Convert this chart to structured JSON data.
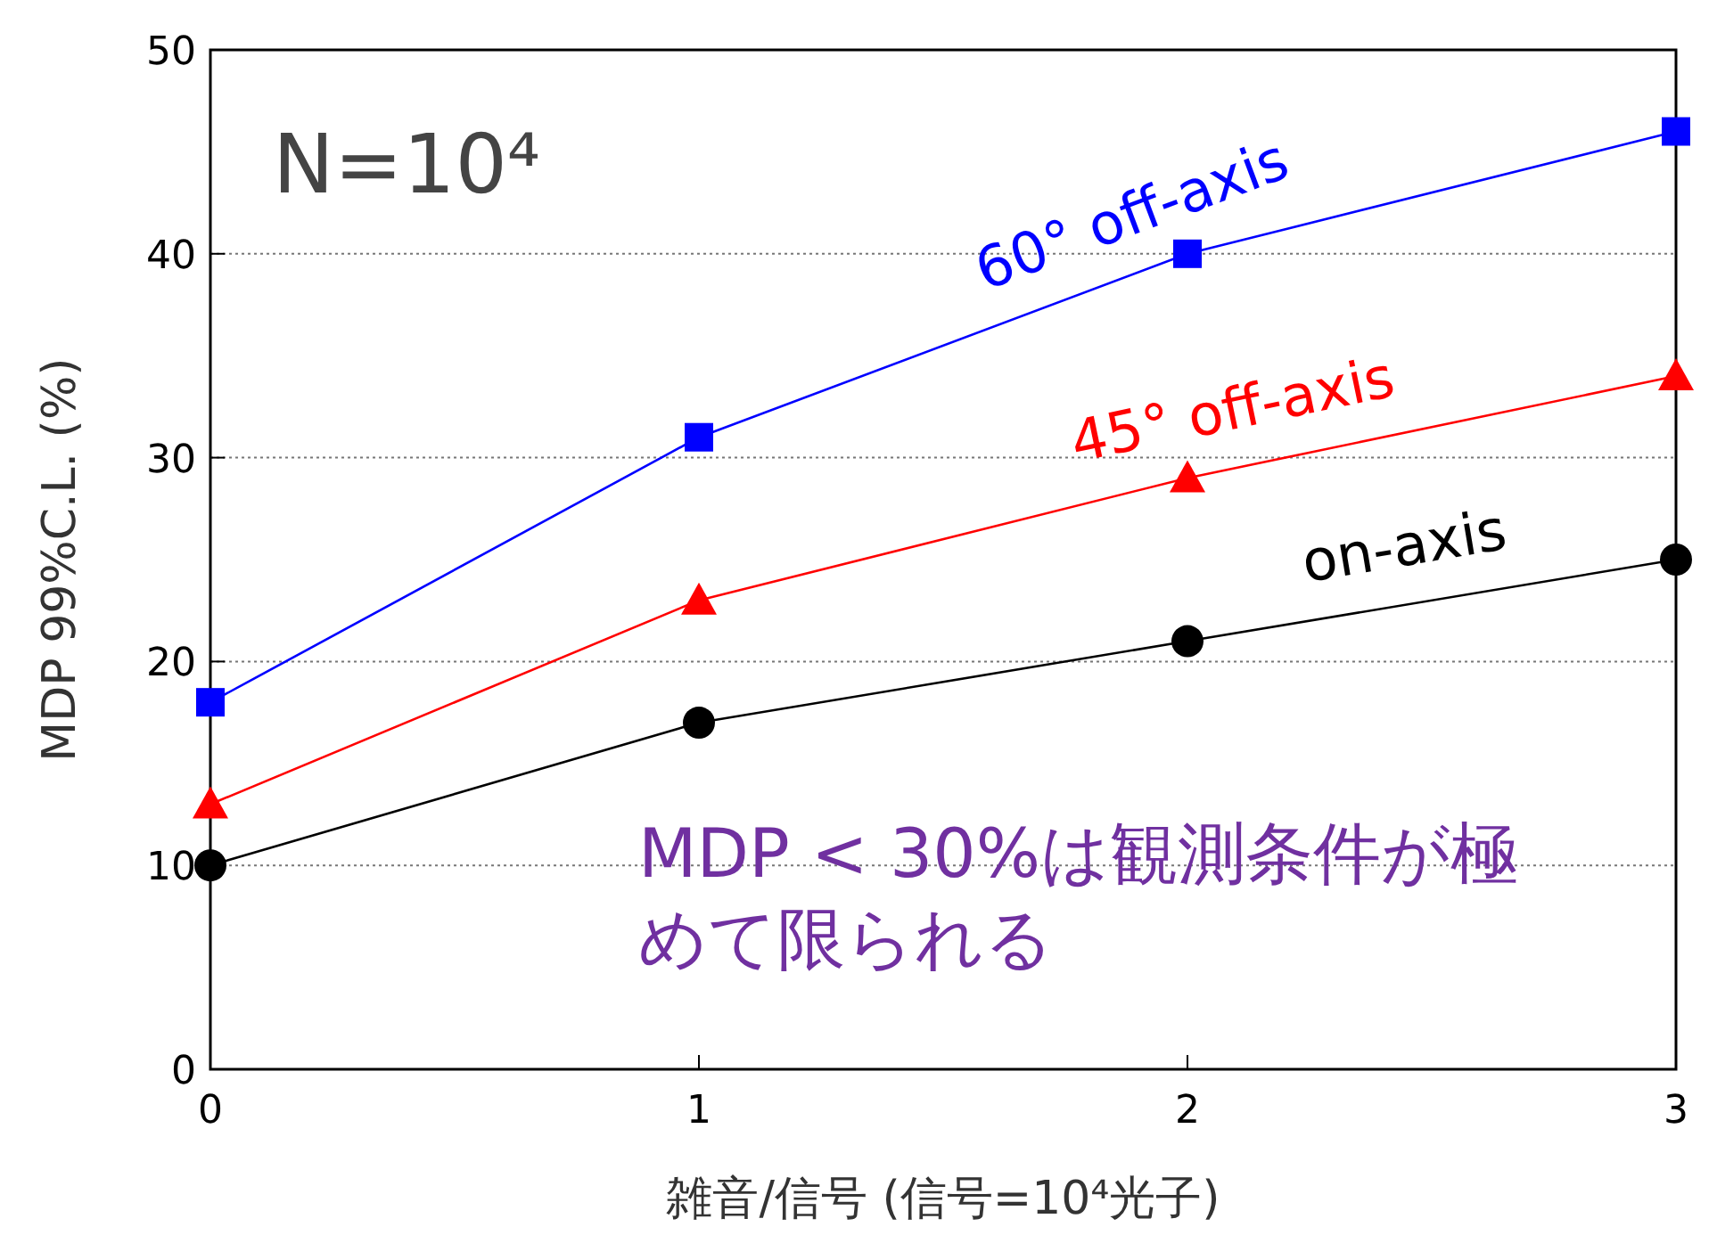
{
  "chart_data": {
    "type": "line",
    "xlabel": "雑音/信号 (信号=10⁴光子)",
    "ylabel": "MDP 99%C.L. (%)",
    "x": [
      0,
      1,
      2,
      3
    ],
    "xlim": [
      0,
      3
    ],
    "ylim": [
      0,
      50
    ],
    "xticks": [
      0,
      1,
      2,
      3
    ],
    "yticks": [
      0,
      10,
      20,
      30,
      40,
      50
    ],
    "grid": "y",
    "series": [
      {
        "name": "on-axis",
        "color": "#000000",
        "marker": "circle",
        "values": [
          10,
          17,
          21,
          25
        ]
      },
      {
        "name": "45° off-axis",
        "color": "#ff0000",
        "marker": "triangle",
        "values": [
          13,
          23,
          29,
          34
        ]
      },
      {
        "name": "60° off-axis",
        "color": "#0000ff",
        "marker": "square",
        "values": [
          18,
          31,
          40,
          46
        ]
      }
    ],
    "annotations": [
      "N=10⁴",
      "MDP < 30%は観測条件が極めて限られる"
    ]
  }
}
